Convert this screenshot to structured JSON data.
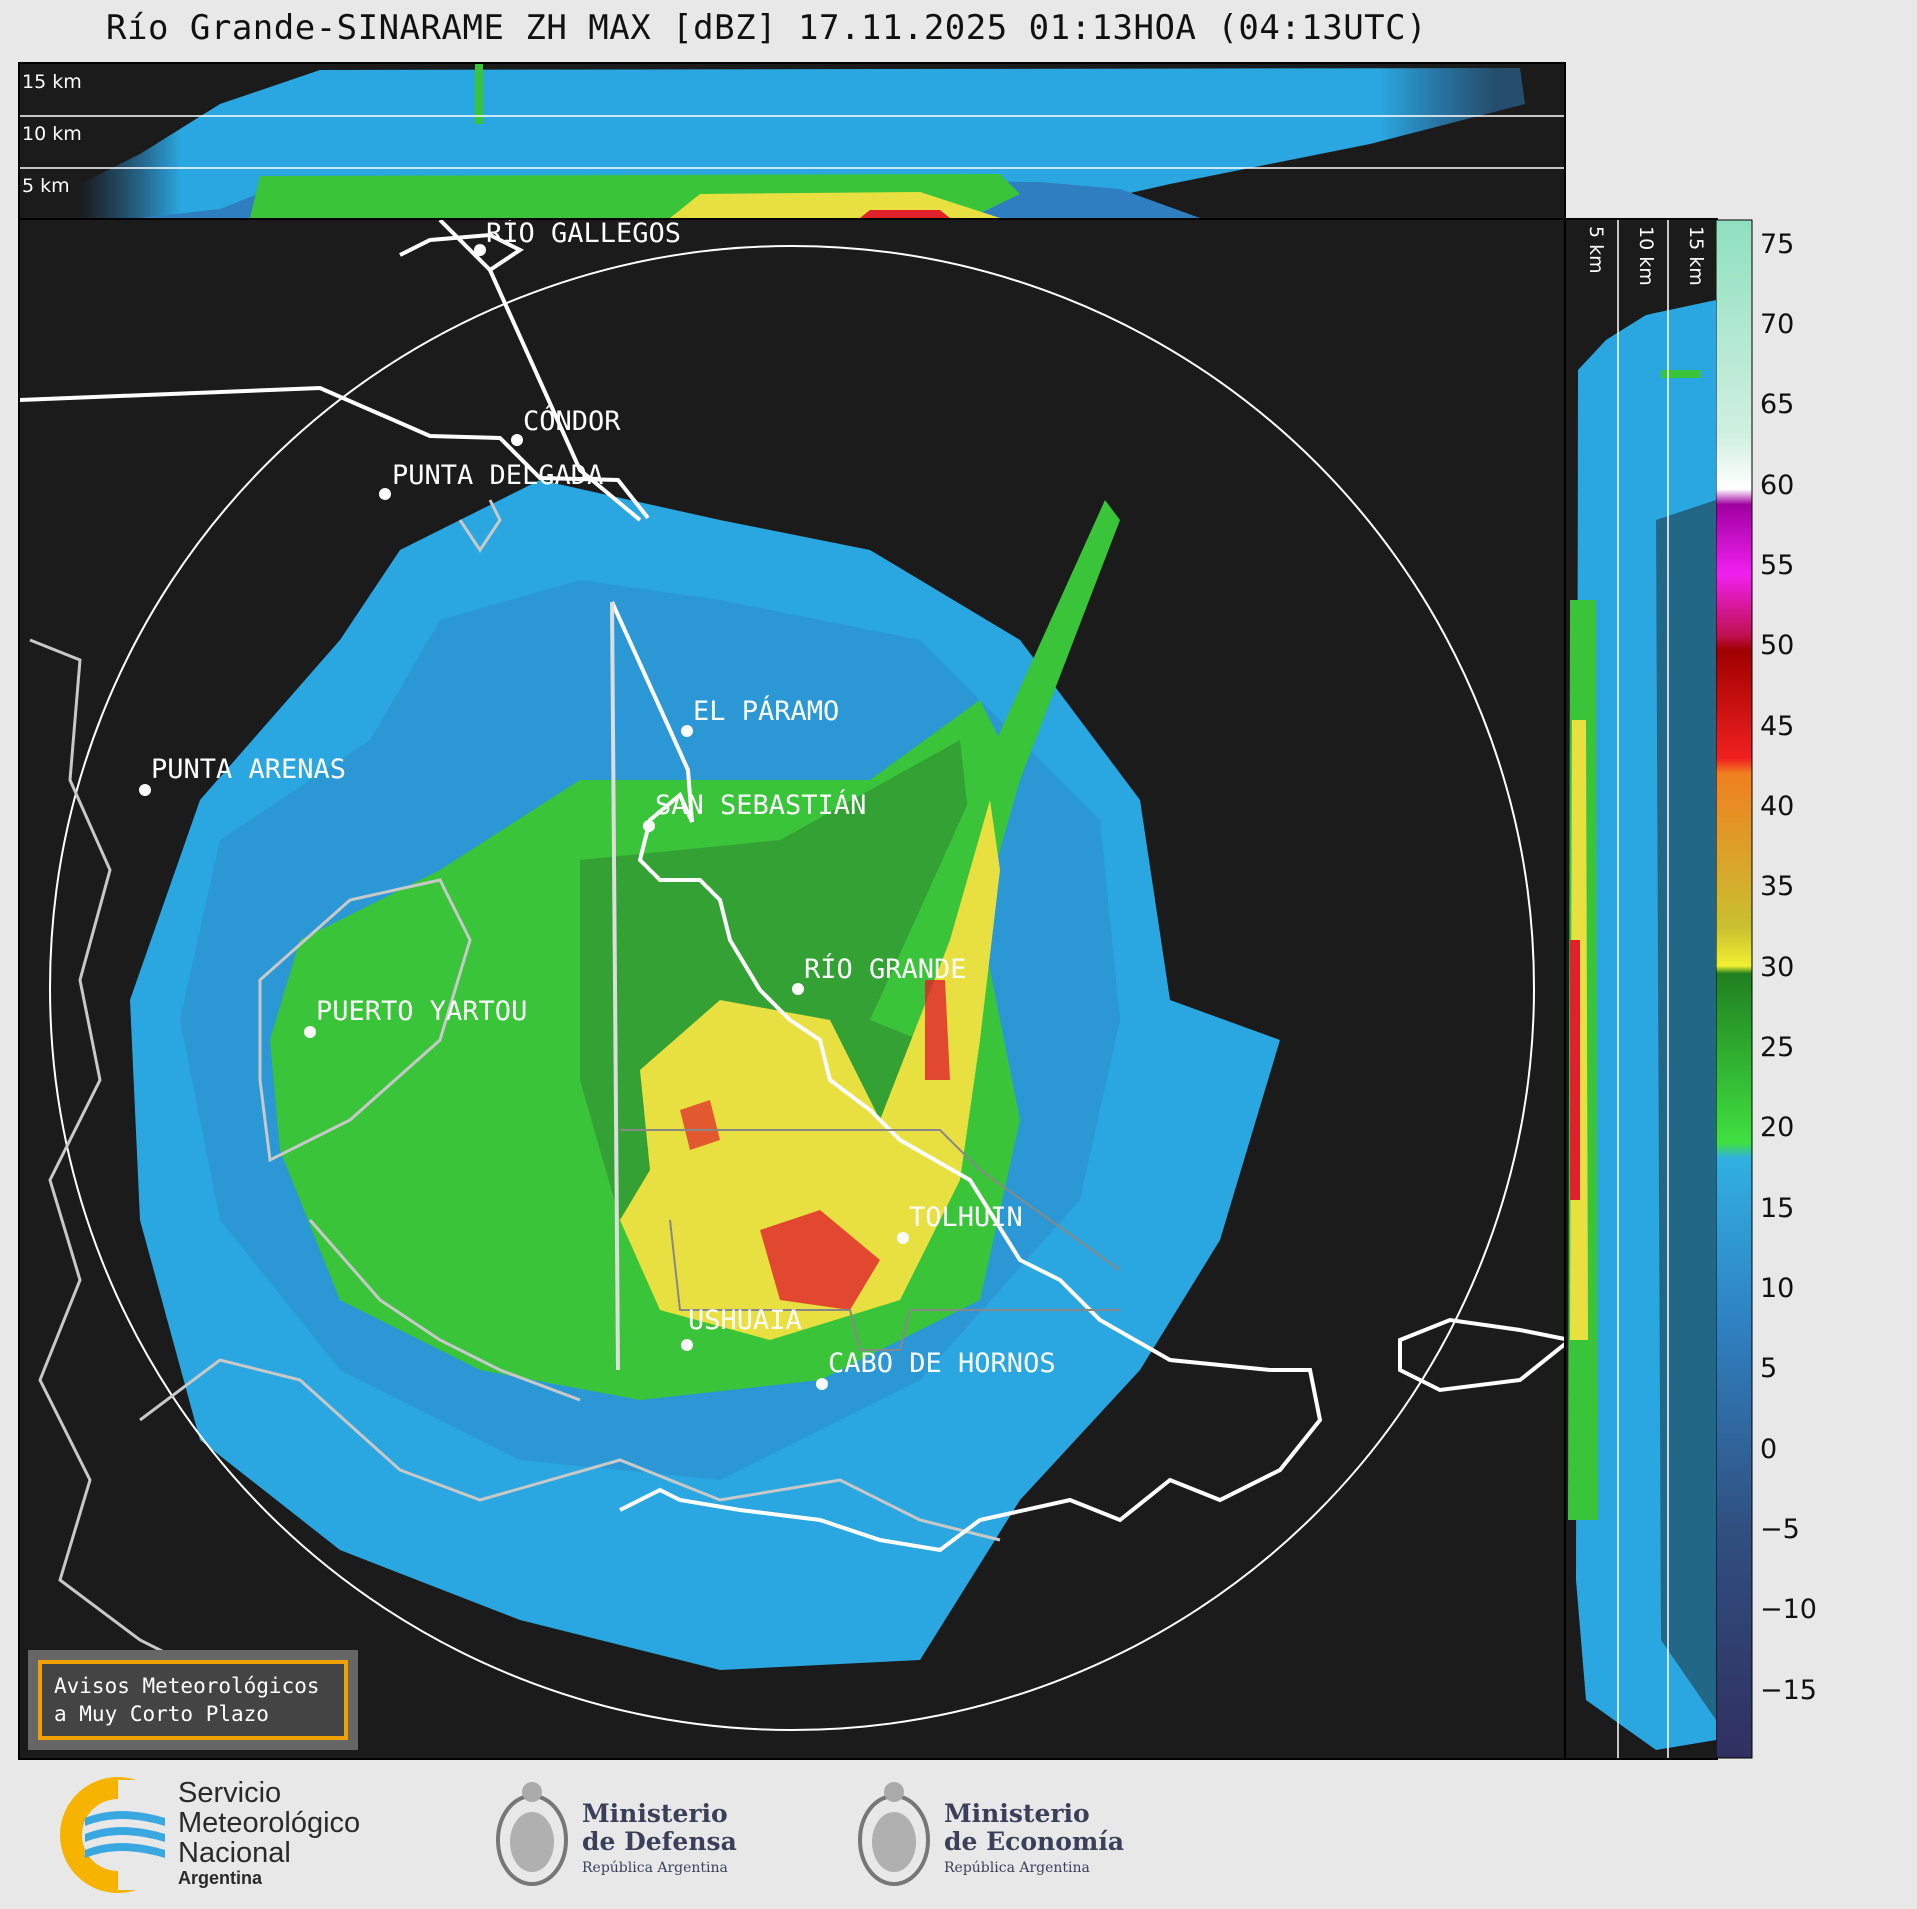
{
  "title": "Río Grande-SINARAME ZH MAX [dBZ] 17.11.2025 01:13HOA (04:13UTC)",
  "top_panel": {
    "levels": [
      "15 km",
      "10 km",
      "5 km"
    ]
  },
  "side_panel": {
    "levels": [
      "5 km",
      "10 km",
      "15 km"
    ]
  },
  "places": [
    {
      "id": "rio-gallegos",
      "name": "RÍO GALLEGOS"
    },
    {
      "id": "condor",
      "name": "CÓNDOR"
    },
    {
      "id": "punta-delgada",
      "name": "PUNTA DELGADA"
    },
    {
      "id": "el-paramo",
      "name": "EL PÁRAMO"
    },
    {
      "id": "san-sebastian",
      "name": "SAN SEBASTIÁN"
    },
    {
      "id": "punta-arenas",
      "name": "PUNTA ARENAS"
    },
    {
      "id": "rio-grande",
      "name": "RÍO GRANDE"
    },
    {
      "id": "puerto-yartou",
      "name": "PUERTO YARTOU"
    },
    {
      "id": "tolhuin",
      "name": "TOLHUIN"
    },
    {
      "id": "ushuaia",
      "name": "USHUAIA"
    },
    {
      "id": "cabo-de-hornos",
      "name": "CABO DE HORNOS"
    }
  ],
  "colorbar": {
    "unit": "dBZ",
    "ticks": [
      "75",
      "70",
      "65",
      "60",
      "55",
      "50",
      "45",
      "40",
      "35",
      "30",
      "25",
      "20",
      "15",
      "10",
      "5",
      "0",
      "−5",
      "−10",
      "−15"
    ],
    "colors": {
      "light_blue": "#2aa7e0",
      "blue": "#2f7fc0",
      "green": "#3ac43a",
      "yellow": "#e8e040",
      "red": "#e0202a",
      "magenta": "#c020c0",
      "white": "#ffffff",
      "mint": "#8fe0c0"
    }
  },
  "warning_box": {
    "line1": "Avisos Meteorológicos",
    "line2": "a Muy Corto Plazo",
    "border_color": "#f0a000"
  },
  "footer": {
    "smn": {
      "line1": "Servicio",
      "line2": "Meteorológico",
      "line3": "Nacional",
      "line4": "Argentina"
    },
    "defensa": {
      "line1": "Ministerio",
      "line2": "de Defensa",
      "line3": "República Argentina"
    },
    "economia": {
      "line1": "Ministerio",
      "line2": "de Economía",
      "line3": "República Argentina"
    }
  }
}
